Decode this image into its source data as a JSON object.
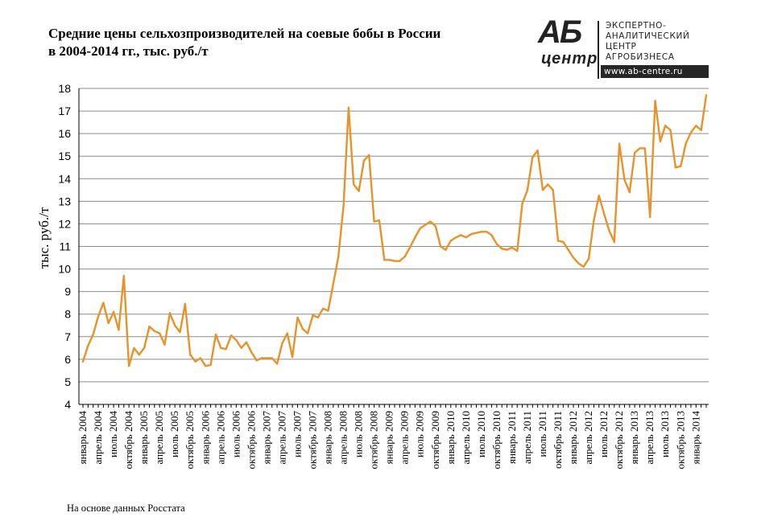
{
  "title": {
    "line1": "Средние цены сельхозпроизводителей  на соевые бобы в России",
    "line2": "в 2004-2014 гг., тыс. руб./т"
  },
  "logo": {
    "mark_top": "АБ",
    "mark_bottom": "центр",
    "lines": [
      "ЭКСПЕРТНО-",
      "АНАЛИТИЧЕСКИЙ",
      "ЦЕНТР",
      "АГРОБИЗНЕСА"
    ],
    "url": "www.ab-centre.ru"
  },
  "source": "На основе данных Росстата",
  "colors": {
    "line": "#E8922A",
    "grid": "#8c8c8c",
    "axis": "#000000"
  },
  "chart_data": {
    "type": "line",
    "title": "Средние цены сельхозпроизводителей  на соевые бобы в России в 2004-2014 гг., тыс. руб./т",
    "xlabel": "",
    "ylabel": "тыс. руб./т",
    "ylim": [
      4,
      18
    ],
    "yticks": [
      4,
      5,
      6,
      7,
      8,
      9,
      10,
      11,
      12,
      13,
      14,
      15,
      16,
      17,
      18
    ],
    "grid": "horizontal",
    "x_start": "январь 2004",
    "x_end": "май 2014",
    "x_tick_labels": [
      "январь 2004",
      "апрель 2004",
      "июль 2004",
      "октябрь 2004",
      "январь 2005",
      "апрель 2005",
      "июль 2005",
      "октябрь 2005",
      "январь 2006",
      "апрель 2006",
      "июль 2006",
      "октябрь 2006",
      "январь 2007",
      "апрель 2007",
      "июль 2007",
      "октябрь 2007",
      "январь 2008",
      "апрель 2008",
      "июль 2008",
      "октябрь 2008",
      "январь 2009",
      "апрель 2009",
      "июль 2009",
      "октябрь 2009",
      "январь 2010",
      "апрель 2010",
      "июль 2010",
      "октябрь 2010",
      "январь 2011",
      "апрель 2011",
      "июль 2011",
      "октябрь 2011",
      "январь 2012",
      "апрель 2012",
      "июль 2012",
      "октябрь 2012",
      "январь 2013",
      "апрель 2013",
      "июль 2013",
      "октябрь 2013",
      "январь 2014"
    ],
    "series": [
      {
        "values": [
          5.9,
          6.6,
          7.1,
          7.9,
          8.5,
          7.6,
          8.1,
          7.3,
          9.7,
          5.7,
          6.5,
          6.2,
          6.5,
          7.45,
          7.25,
          7.15,
          6.65,
          8.05,
          7.5,
          7.2,
          8.45,
          6.2,
          5.9,
          6.05,
          5.7,
          5.75,
          7.1,
          6.5,
          6.45,
          7.05,
          6.85,
          6.5,
          6.75,
          6.3,
          5.95,
          6.05,
          6.05,
          6.05,
          5.8,
          6.7,
          7.15,
          6.1,
          7.85,
          7.35,
          7.15,
          7.95,
          7.85,
          8.25,
          8.15,
          9.35,
          10.55,
          12.8,
          17.15,
          13.75,
          13.45,
          14.8,
          15.05,
          12.1,
          12.15,
          10.4,
          10.4,
          10.35,
          10.35,
          10.55,
          10.95,
          11.4,
          11.8,
          11.95,
          12.1,
          11.9,
          11.0,
          10.85,
          11.25,
          11.4,
          11.5,
          11.4,
          11.55,
          11.6,
          11.65,
          11.65,
          11.5,
          11.1,
          10.9,
          10.85,
          10.95,
          10.8,
          12.9,
          13.5,
          14.95,
          15.25,
          13.5,
          13.75,
          13.5,
          11.25,
          11.2,
          10.85,
          10.5,
          10.25,
          10.1,
          10.45,
          12.15,
          13.25,
          12.45,
          11.7,
          11.2,
          15.55,
          13.95,
          13.4,
          15.15,
          15.35,
          15.35,
          12.3,
          17.45,
          15.65,
          16.35,
          16.15,
          14.5,
          14.55,
          15.55,
          16.05,
          16.35,
          16.15,
          17.7
        ]
      }
    ]
  }
}
